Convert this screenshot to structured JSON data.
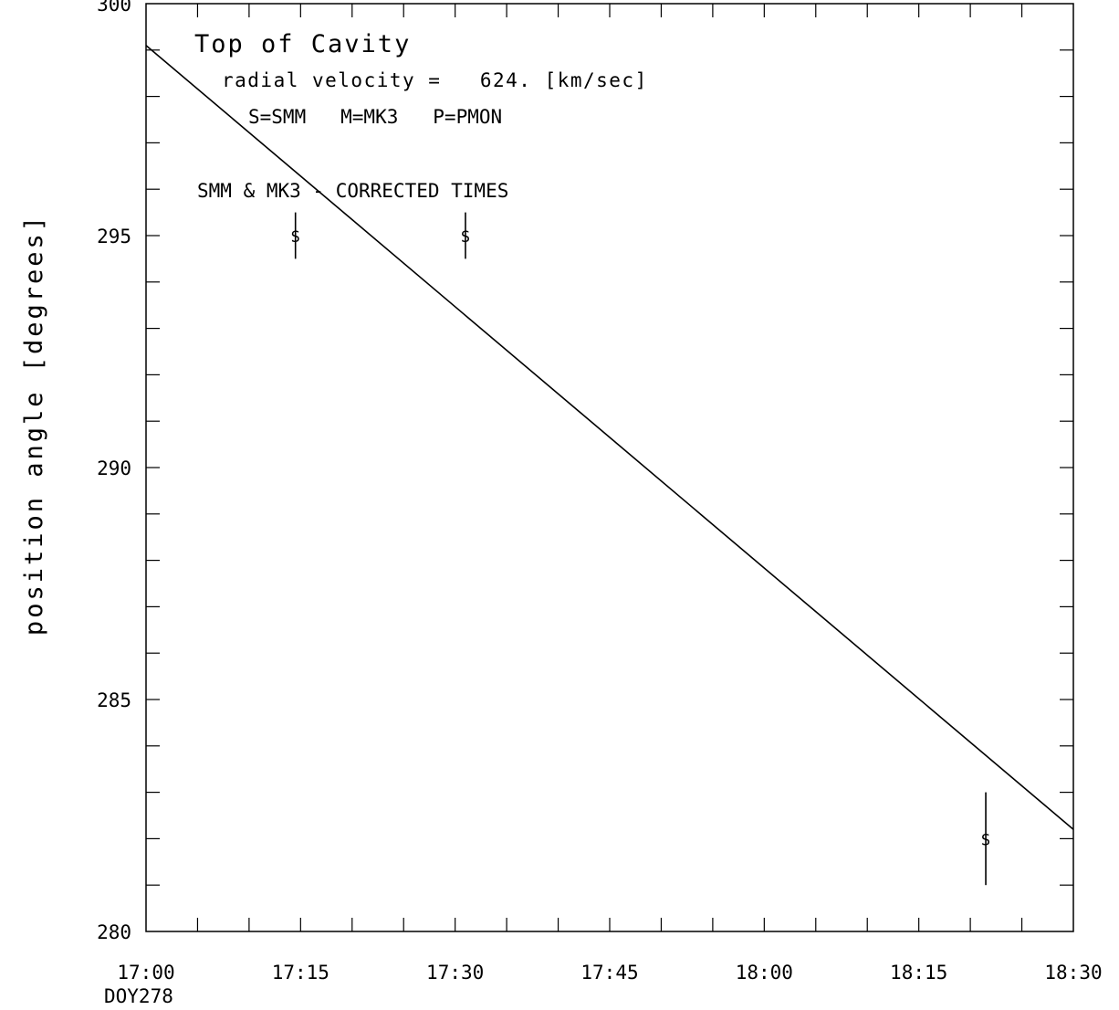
{
  "chart_data": {
    "type": "scatter",
    "title": "Top of Cavity",
    "subtitle": "radial velocity =   624. [km/sec]",
    "legend_text": "S=SMM   M=MK3   P=PMON",
    "annotation": "SMM & MK3 - CORRECTED TIMES",
    "ylabel": "position angle [degrees]",
    "xlabel": "",
    "x_sublabel": "DOY278",
    "xlim": [
      "17:00",
      "18:30"
    ],
    "ylim": [
      280,
      300
    ],
    "x_tick_labels": [
      "17:00",
      "17:15",
      "17:30",
      "17:45",
      "18:00",
      "18:15",
      "18:30"
    ],
    "y_tick_labels": [
      "280",
      "285",
      "290",
      "295",
      "300"
    ],
    "grid": false,
    "fit_line": {
      "x": [
        "17:00",
        "18:30"
      ],
      "y": [
        299.1,
        282.2
      ]
    },
    "points": [
      {
        "x": "17:14.5",
        "y": 295.0,
        "y_err": 0.5,
        "symbol": "S"
      },
      {
        "x": "17:31",
        "y": 295.0,
        "y_err": 0.5,
        "symbol": "S"
      },
      {
        "x": "18:21.5",
        "y": 282.0,
        "y_err": 1.0,
        "symbol": "S"
      }
    ]
  }
}
